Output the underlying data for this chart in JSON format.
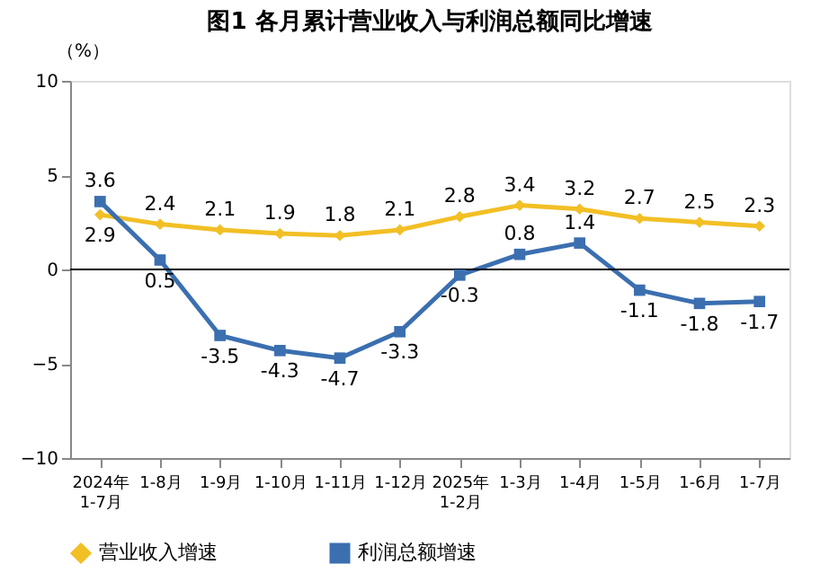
{
  "chart_data": {
    "type": "line",
    "title": "图1  各月累计营业收入与利润总额同比增速",
    "ylabel": "（%）",
    "categories": [
      "2024年\n1-7月",
      "1-8月",
      "1-9月",
      "1-10月",
      "1-11月",
      "1-12月",
      "2025年\n1-2月",
      "1-3月",
      "1-4月",
      "1-5月",
      "1-6月",
      "1-7月"
    ],
    "series": [
      {
        "name": "营业收入增速",
        "color": "#f2bf25",
        "marker": "diamond",
        "values": [
          2.9,
          2.4,
          2.1,
          1.9,
          1.8,
          2.1,
          2.8,
          3.4,
          3.2,
          2.7,
          2.5,
          2.3
        ]
      },
      {
        "name": "利润总额增速",
        "color": "#3b6fb0",
        "marker": "square",
        "values": [
          3.6,
          0.5,
          -3.5,
          -4.3,
          -4.7,
          -3.3,
          -0.3,
          0.8,
          1.4,
          -1.1,
          -1.8,
          -1.7
        ]
      }
    ],
    "ref_lines": [
      {
        "axis": "y",
        "value": 0,
        "color": "#000000",
        "line_style": "solid"
      }
    ],
    "ylim": [
      -10,
      10
    ],
    "yticks": [
      -10,
      -5,
      0,
      5,
      10
    ],
    "data_labels": true,
    "legend": "bottom",
    "grid": false,
    "line_style": "solid"
  }
}
